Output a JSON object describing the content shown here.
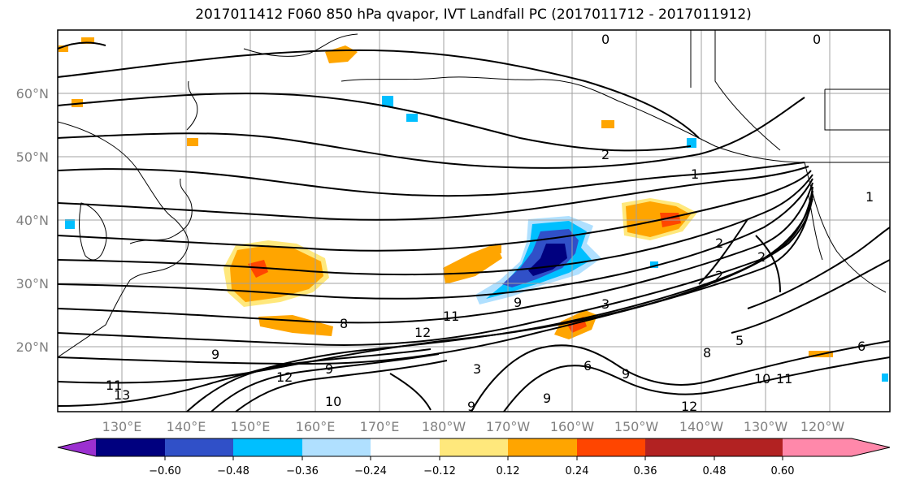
{
  "title": "2017011412 F060 850 hPa qvapor, IVT Landfall PC (2017011712 - 2017011912)",
  "lon_labels": [
    "130°E",
    "140°E",
    "150°E",
    "160°E",
    "170°E",
    "180°W",
    "170°W",
    "160°W",
    "150°W",
    "140°W",
    "130°W",
    "120°W"
  ],
  "lat_labels": [
    "60°N",
    "50°N",
    "40°N",
    "30°N",
    "20°N"
  ],
  "colorbar": {
    "colors": [
      "#9b30d0",
      "#00007f",
      "#3050c8",
      "#00bfff",
      "#b0e0ff",
      "#ffffff",
      "#ffe87c",
      "#ffa500",
      "#ff4500",
      "#b22222",
      "#ff88aa"
    ],
    "tick_labels": [
      "−0.60",
      "−0.48",
      "−0.36",
      "−0.24",
      "−0.12",
      "0.12",
      "0.24",
      "0.36",
      "0.48",
      "0.60"
    ]
  },
  "contour_labels": [
    "0",
    "0",
    "2",
    "1",
    "2",
    "2",
    "2",
    "3",
    "3",
    "5",
    "6",
    "6",
    "9",
    "9",
    "9",
    "11",
    "12",
    "12",
    "13",
    "10",
    "11",
    "8",
    "8",
    "9",
    "9",
    "9",
    "10",
    "11",
    "12",
    "1"
  ]
}
